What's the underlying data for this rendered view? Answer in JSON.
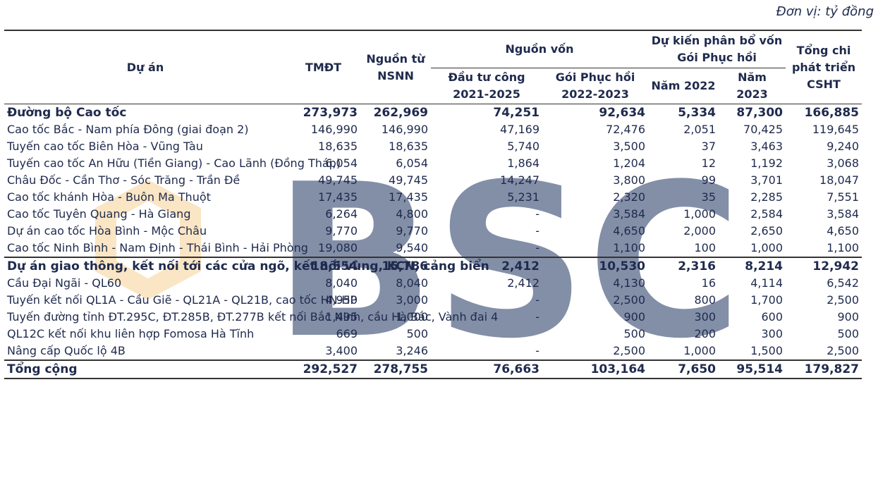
{
  "unit_note": "Đơn vị: tỷ đồng",
  "watermark": "BSC",
  "headers": {
    "project": "Dự án",
    "tmdt": "TMĐT",
    "nsnn": "Nguồn từ NSNN",
    "funding_group": "Nguồn vốn",
    "public_invest": "Đầu tư công 2021-2025",
    "recovery": "Gói Phục hồi 2022-2023",
    "alloc_group": "Dự kiến phân bổ vốn Gói Phục hồi",
    "y2022": "Năm 2022",
    "y2023": "Năm 2023",
    "total_dev": "Tổng chi phát triển CSHT"
  },
  "rows": [
    {
      "type": "group",
      "name": "Đường bộ Cao tốc",
      "v": [
        "273,973",
        "262,969",
        "74,251",
        "92,634",
        "5,334",
        "87,300",
        "166,885"
      ]
    },
    {
      "type": "item",
      "name": "Cao tốc Bắc - Nam phía Đông (giai đoạn 2)",
      "v": [
        "146,990",
        "146,990",
        "47,169",
        "72,476",
        "2,051",
        "70,425",
        "119,645"
      ]
    },
    {
      "type": "item",
      "name": "Tuyến cao tốc Biên Hòa - Vũng Tàu",
      "v": [
        "18,635",
        "18,635",
        "5,740",
        "3,500",
        "37",
        "3,463",
        "9,240"
      ]
    },
    {
      "type": "item",
      "name": "Tuyến cao tốc An Hữu (Tiền Giang) - Cao Lãnh (Đồng Tháp)",
      "v": [
        "6,054",
        "6,054",
        "1,864",
        "1,204",
        "12",
        "1,192",
        "3,068"
      ]
    },
    {
      "type": "item",
      "name": "Châu Đốc - Cần Thơ - Sóc Trăng - Trần Đề",
      "v": [
        "49,745",
        "49,745",
        "14,247",
        "3,800",
        "99",
        "3,701",
        "18,047"
      ]
    },
    {
      "type": "item",
      "name": "Cao tốc khánh Hòa - Buôn Ma Thuột",
      "v": [
        "17,435",
        "17,435",
        "5,231",
        "2,320",
        "35",
        "2,285",
        "7,551"
      ]
    },
    {
      "type": "item",
      "name": "Cao tốc Tuyên Quang - Hà Giang",
      "v": [
        "6,264",
        "4,800",
        "-",
        "3,584",
        "1,000",
        "2,584",
        "3,584"
      ]
    },
    {
      "type": "item",
      "name": "Dự án cao tốc Hòa Bình - Mộc Châu",
      "v": [
        "9,770",
        "9,770",
        "-",
        "4,650",
        "2,000",
        "2,650",
        "4,650"
      ]
    },
    {
      "type": "item",
      "name": "Cao tốc Ninh Bình - Nam Định - Thái Bình - Hải Phòng",
      "v": [
        "19,080",
        "9,540",
        "-",
        "1,100",
        "100",
        "1,000",
        "1,100"
      ]
    },
    {
      "type": "group",
      "name": "Dự án giao thông, kết nối tới các cửa ngõ, kết nối vùng, KCN, cảng biển",
      "v": [
        "18,554",
        "15,786",
        "2,412",
        "10,530",
        "2,316",
        "8,214",
        "12,942"
      ]
    },
    {
      "type": "item",
      "name": "Cầu Đại Ngãi - QL60",
      "v": [
        "8,040",
        "8,040",
        "2,412",
        "4,130",
        "16",
        "4,114",
        "6,542"
      ]
    },
    {
      "type": "item",
      "name": "Tuyến kết nối QL1A - Cầu Giẽ - QL21A - QL21B, cao tốc HN-HP",
      "v": [
        "4,950",
        "3,000",
        "-",
        "2,500",
        "800",
        "1,700",
        "2,500"
      ]
    },
    {
      "type": "item",
      "name": "Tuyến đường tỉnh ĐT.295C, ĐT.285B, ĐT.277B kết nối Bắc Ninh, cầu Hà Bắc, Vành đai 4",
      "v": [
        "1,495",
        "1,000",
        "-",
        "900",
        "300",
        "600",
        "900"
      ]
    },
    {
      "type": "item",
      "name": "QL12C kết nối khu liên hợp Fomosa Hà Tĩnh",
      "v": [
        "669",
        "500",
        "",
        "500",
        "200",
        "300",
        "500"
      ]
    },
    {
      "type": "item",
      "name": "Nâng cấp Quốc lộ 4B",
      "v": [
        "3,400",
        "3,246",
        "-",
        "2,500",
        "1,000",
        "1,500",
        "2,500"
      ]
    },
    {
      "type": "total",
      "name": "Tổng cộng",
      "v": [
        "292,527",
        "278,755",
        "76,663",
        "103,164",
        "7,650",
        "95,514",
        "179,827"
      ]
    }
  ]
}
